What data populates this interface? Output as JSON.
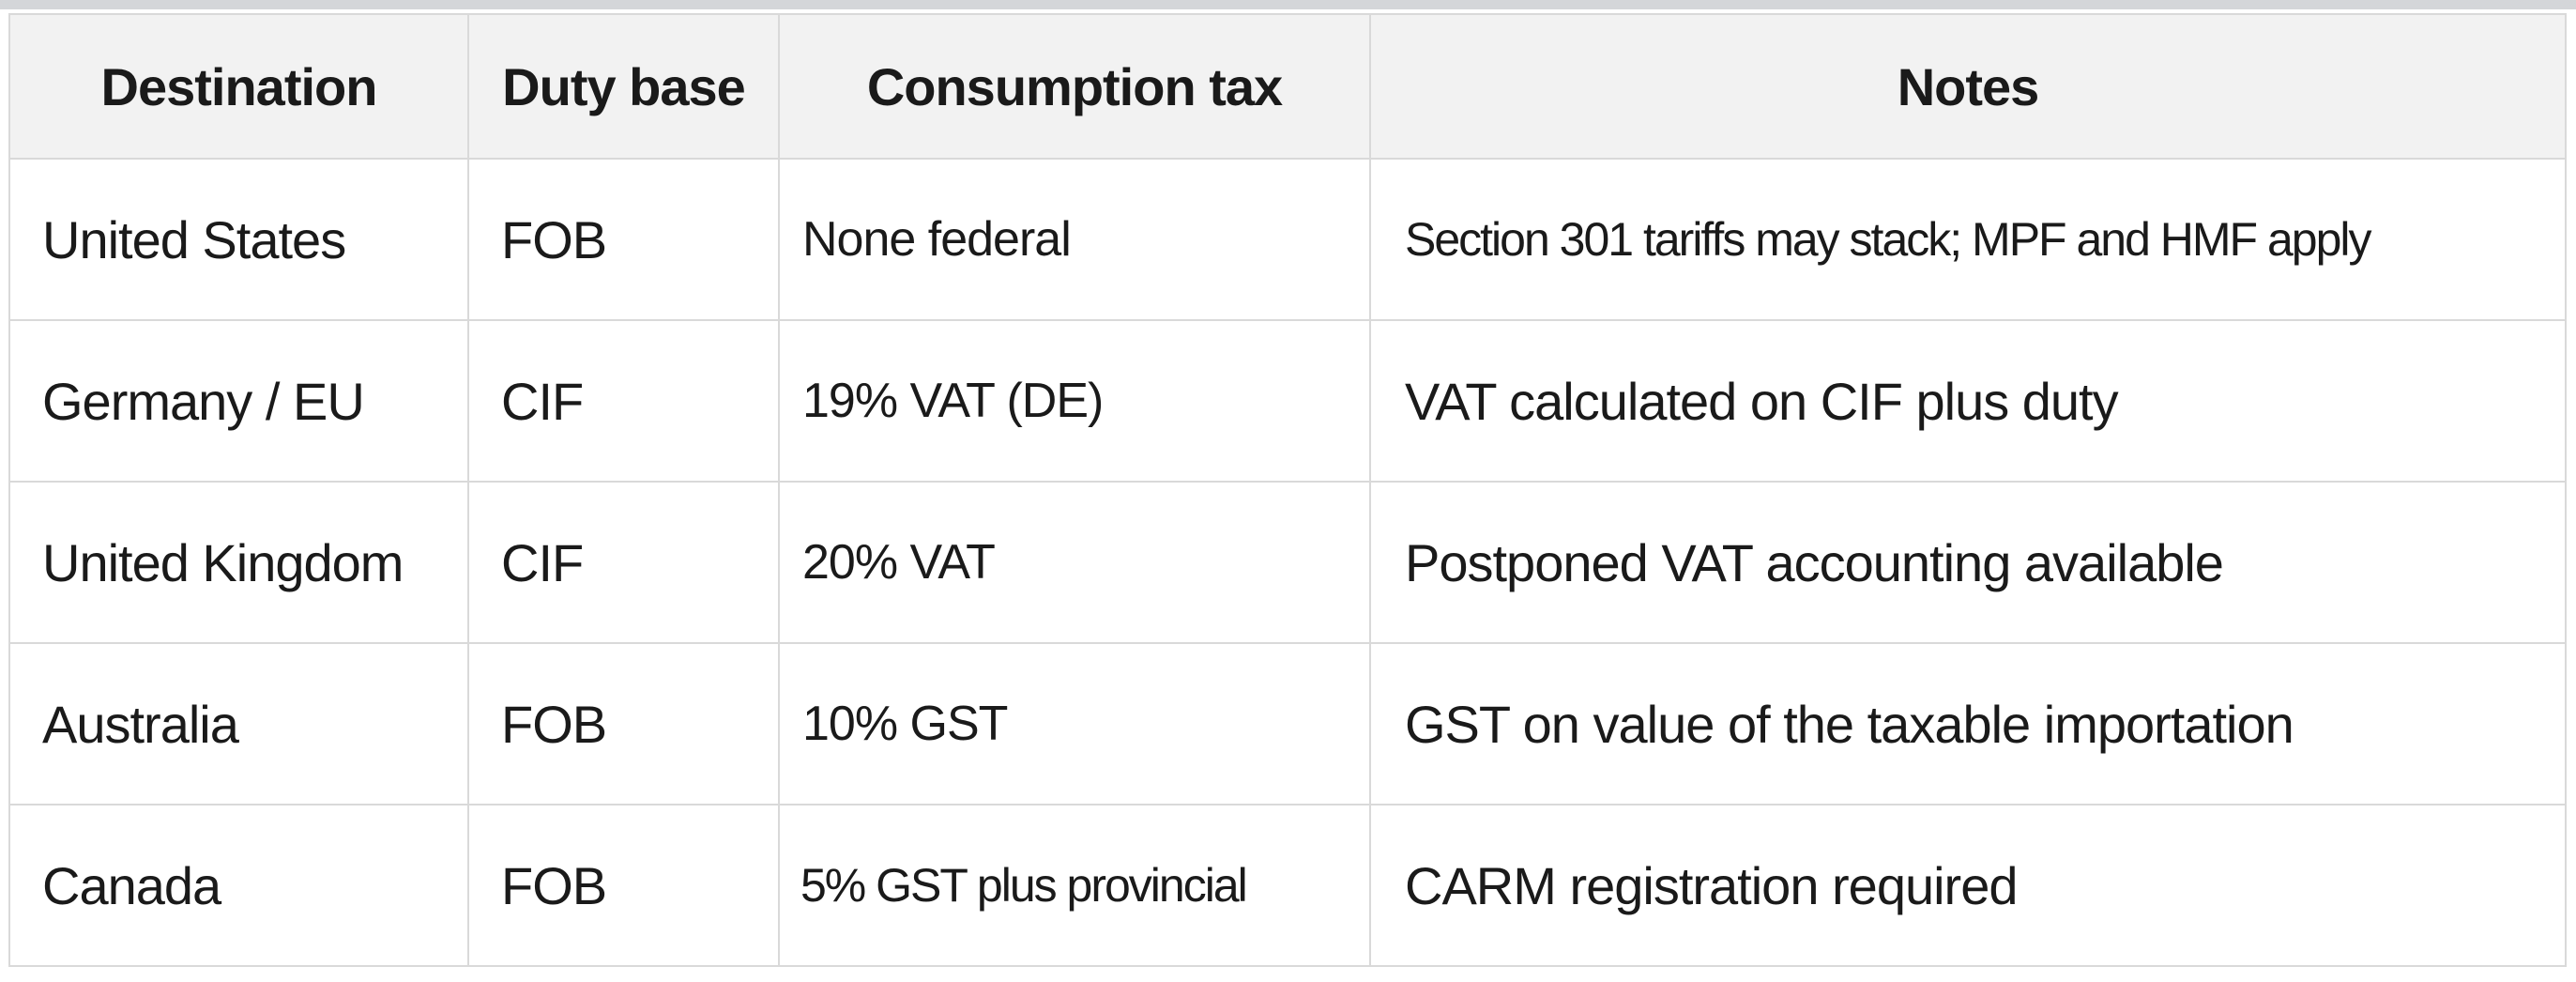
{
  "table": {
    "columns": [
      "Destination",
      "Duty base",
      "Consumption tax",
      "Notes"
    ],
    "rows": [
      [
        "United States",
        "FOB",
        "None federal",
        "Section 301 tariffs may stack; MPF and HMF apply"
      ],
      [
        "Germany / EU",
        "CIF",
        "19% VAT (DE)",
        "VAT calculated on CIF plus duty"
      ],
      [
        "United Kingdom",
        "CIF",
        "20% VAT",
        "Postponed VAT accounting available"
      ],
      [
        "Australia",
        "FOB",
        "10% GST",
        "GST on value of the taxable importation"
      ],
      [
        "Canada",
        "FOB",
        "5% GST plus provincial",
        "CARM registration required"
      ]
    ]
  }
}
